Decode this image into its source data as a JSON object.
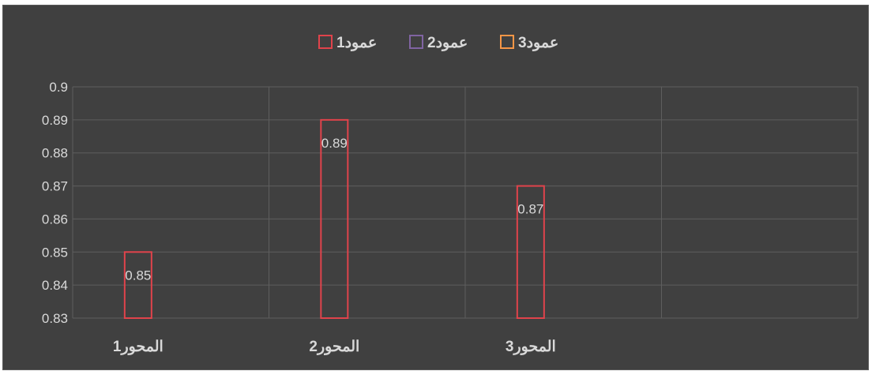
{
  "chart_data": {
    "type": "bar",
    "title": "",
    "xlabel": "",
    "ylabel": "",
    "categories": [
      "المحور1",
      "المحور2",
      "المحور3"
    ],
    "series": [
      {
        "name": "عمود1",
        "values": [
          0.85,
          0.89,
          0.87
        ],
        "color": "#e0434b"
      },
      {
        "name": "عمود2",
        "values": [
          null,
          null,
          null
        ],
        "color": "#8064a2"
      },
      {
        "name": "عمود3",
        "values": [
          null,
          null,
          null
        ],
        "color": "#f79646"
      }
    ],
    "data_labels": [
      "0.85",
      "0.89",
      "0.87"
    ],
    "ylim": [
      0.83,
      0.9
    ],
    "y_ticks": [
      "0.83",
      "0.84",
      "0.85",
      "0.86",
      "0.87",
      "0.88",
      "0.89",
      "0.9"
    ],
    "grid": true,
    "legend_position": "top",
    "background": "#404040"
  }
}
